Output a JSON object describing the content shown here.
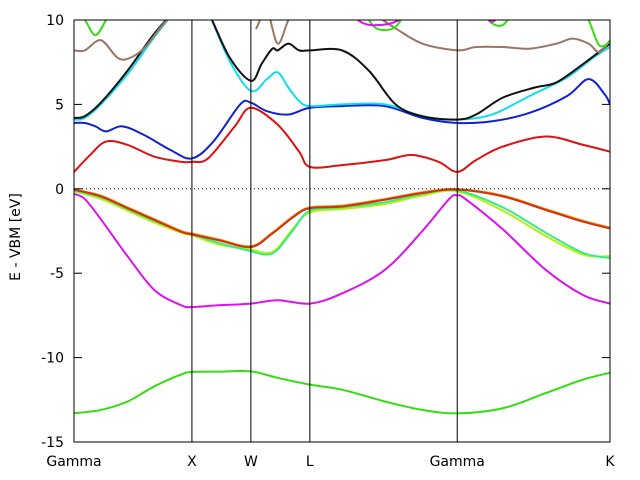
{
  "chart_data": {
    "type": "line",
    "ylabel": "E - VBM [eV]",
    "xlabel": "",
    "ylim": [
      -15,
      10
    ],
    "yticks": [
      -15,
      -10,
      -5,
      0,
      5,
      10
    ],
    "xlim": [
      0,
      1
    ],
    "kpoints": [
      {
        "label": "Gamma",
        "x": 0.0
      },
      {
        "label": "X",
        "x": 0.22
      },
      {
        "label": "W",
        "x": 0.33
      },
      {
        "label": "L",
        "x": 0.44
      },
      {
        "label": "Gamma",
        "x": 0.715
      },
      {
        "label": "K",
        "x": 1.0
      }
    ],
    "reference_line": {
      "y": 0,
      "style": "dotted"
    },
    "grid": false,
    "series": [
      {
        "color": "#33dd11",
        "x": [
          0,
          0.05,
          0.1,
          0.15,
          0.2,
          0.22,
          0.27,
          0.33,
          0.38,
          0.44,
          0.5,
          0.58,
          0.65,
          0.715,
          0.8,
          0.88,
          0.95,
          1.0
        ],
        "y": [
          -13.3,
          -13.1,
          -12.6,
          -11.7,
          -11.0,
          -10.85,
          -10.83,
          -10.82,
          -11.2,
          -11.6,
          -11.9,
          -12.6,
          -13.1,
          -13.3,
          -13.0,
          -12.1,
          -11.3,
          -10.9
        ]
      },
      {
        "color": "#dd11ee",
        "x": [
          0,
          0.02,
          0.05,
          0.1,
          0.15,
          0.2,
          0.22,
          0.27,
          0.33,
          0.38,
          0.44,
          0.5,
          0.58,
          0.65,
          0.7,
          0.715,
          0.73,
          0.8,
          0.88,
          0.95,
          1.0
        ],
        "y": [
          -0.3,
          -0.6,
          -1.8,
          -4.0,
          -6.0,
          -6.9,
          -7.0,
          -6.9,
          -6.8,
          -6.6,
          -6.8,
          -6.2,
          -4.8,
          -2.5,
          -0.6,
          -0.4,
          -0.6,
          -2.4,
          -4.8,
          -6.3,
          -6.8
        ]
      },
      {
        "color": "#bbee11",
        "x": [
          0,
          0.05,
          0.1,
          0.15,
          0.2,
          0.22,
          0.27,
          0.33,
          0.36,
          0.38,
          0.41,
          0.44,
          0.5,
          0.58,
          0.65,
          0.715,
          0.8,
          0.88,
          0.95,
          1.0
        ],
        "y": [
          -0.15,
          -0.6,
          -1.3,
          -2.0,
          -2.6,
          -2.75,
          -3.3,
          -3.6,
          -3.8,
          -3.5,
          -2.3,
          -1.4,
          -1.2,
          -0.9,
          -0.4,
          -0.15,
          -1.3,
          -2.8,
          -3.9,
          -4.0
        ]
      },
      {
        "color": "#33ee88",
        "x": [
          0,
          0.05,
          0.1,
          0.15,
          0.2,
          0.22,
          0.27,
          0.33,
          0.36,
          0.38,
          0.41,
          0.44,
          0.5,
          0.58,
          0.65,
          0.715,
          0.8,
          0.88,
          0.95,
          1.0
        ],
        "y": [
          -0.1,
          -0.5,
          -1.2,
          -1.9,
          -2.5,
          -2.7,
          -3.2,
          -3.7,
          -3.9,
          -3.6,
          -2.4,
          -1.3,
          -1.1,
          -0.8,
          -0.3,
          -0.1,
          -1.1,
          -2.6,
          -3.8,
          -4.1
        ]
      },
      {
        "color": "#ff8800",
        "x": [
          0,
          0.05,
          0.1,
          0.15,
          0.2,
          0.22,
          0.27,
          0.33,
          0.37,
          0.41,
          0.44,
          0.5,
          0.58,
          0.65,
          0.715,
          0.8,
          0.88,
          0.95,
          1.0
        ],
        "y": [
          -0.05,
          -0.4,
          -1.1,
          -1.8,
          -2.5,
          -2.65,
          -3.0,
          -3.4,
          -2.6,
          -1.6,
          -1.1,
          -1.0,
          -0.6,
          -0.2,
          -0.02,
          -0.4,
          -1.2,
          -1.9,
          -2.3
        ]
      },
      {
        "color": "#cc3311",
        "x": [
          0,
          0.05,
          0.1,
          0.15,
          0.2,
          0.22,
          0.27,
          0.33,
          0.37,
          0.41,
          0.44,
          0.5,
          0.58,
          0.65,
          0.715,
          0.8,
          0.88,
          0.95,
          1.0
        ],
        "y": [
          -0.05,
          -0.45,
          -1.15,
          -1.85,
          -2.55,
          -2.7,
          -3.05,
          -3.45,
          -2.65,
          -1.65,
          -1.15,
          -1.05,
          -0.65,
          -0.25,
          -0.05,
          -0.45,
          -1.25,
          -1.95,
          -2.35
        ]
      },
      {
        "color": "#dd1111",
        "x": [
          0,
          0.03,
          0.06,
          0.1,
          0.15,
          0.2,
          0.22,
          0.25,
          0.3,
          0.33,
          0.38,
          0.42,
          0.44,
          0.5,
          0.58,
          0.63,
          0.68,
          0.715,
          0.75,
          0.8,
          0.88,
          0.95,
          1.0
        ],
        "y": [
          1.0,
          2.0,
          2.8,
          2.6,
          1.9,
          1.6,
          1.6,
          1.8,
          3.7,
          4.8,
          3.8,
          2.2,
          1.3,
          1.4,
          1.7,
          2.0,
          1.6,
          1.0,
          1.7,
          2.5,
          3.1,
          2.6,
          2.2
        ]
      },
      {
        "color": "#1122cc",
        "x": [
          0,
          0.02,
          0.04,
          0.06,
          0.09,
          0.13,
          0.18,
          0.22,
          0.26,
          0.31,
          0.33,
          0.36,
          0.4,
          0.44,
          0.5,
          0.58,
          0.65,
          0.715,
          0.78,
          0.85,
          0.92,
          0.96,
          0.99,
          1.0
        ],
        "y": [
          3.9,
          3.9,
          3.7,
          3.4,
          3.7,
          3.2,
          2.3,
          1.8,
          2.8,
          5.0,
          5.1,
          4.6,
          4.4,
          4.8,
          4.9,
          4.9,
          4.2,
          3.9,
          4.0,
          4.5,
          5.5,
          6.5,
          5.6,
          5.0
        ]
      },
      {
        "color": "#11ddee",
        "x": [
          0,
          0.02,
          0.05,
          0.1,
          0.15,
          0.2,
          0.22,
          0.25,
          0.29,
          0.33,
          0.36,
          0.38,
          0.4,
          0.42,
          0.44,
          0.5,
          0.58,
          0.65,
          0.715,
          0.78,
          0.85,
          0.92,
          0.97,
          1.0
        ],
        "y": [
          4.1,
          4.2,
          5.0,
          6.8,
          9.0,
          11.0,
          12.0,
          10.5,
          7.6,
          5.8,
          6.5,
          6.9,
          6.0,
          5.2,
          4.9,
          5.0,
          5.0,
          4.3,
          4.1,
          4.4,
          5.5,
          6.6,
          7.8,
          8.4
        ]
      },
      {
        "color": "#111111",
        "x": [
          0,
          0.02,
          0.05,
          0.1,
          0.15,
          0.2,
          0.22,
          0.25,
          0.29,
          0.33,
          0.35,
          0.37,
          0.38,
          0.4,
          0.42,
          0.44,
          0.5,
          0.55,
          0.6,
          0.65,
          0.715,
          0.75,
          0.8,
          0.86,
          0.9,
          0.95,
          1.0
        ],
        "y": [
          4.2,
          4.3,
          5.1,
          7.0,
          9.2,
          11.0,
          12.0,
          10.5,
          7.8,
          6.4,
          7.4,
          8.3,
          8.2,
          8.6,
          8.2,
          8.2,
          8.2,
          7.0,
          5.0,
          4.3,
          4.1,
          4.4,
          5.4,
          6.0,
          6.3,
          7.4,
          8.6
        ]
      },
      {
        "color": "#997766",
        "x": [
          0,
          0.02,
          0.05,
          0.08,
          0.1,
          0.13,
          0.16,
          0.2
        ],
        "y": [
          8.2,
          8.2,
          8.8,
          7.8,
          7.7,
          8.3,
          9.5,
          11.0
        ]
      },
      {
        "color": "#997766",
        "x": [
          0.34,
          0.36,
          0.38,
          0.4,
          0.42,
          0.44,
          0.5,
          0.55,
          0.6,
          0.65,
          0.715,
          0.75,
          0.8,
          0.85,
          0.9,
          0.93,
          0.96,
          0.98,
          1.0
        ],
        "y": [
          9.5,
          10.5,
          8.6,
          10.0,
          11.0,
          11.5,
          11.0,
          10.5,
          9.5,
          8.6,
          8.2,
          8.4,
          8.4,
          8.3,
          8.6,
          8.9,
          8.6,
          8.1,
          8.8
        ]
      },
      {
        "color": "#33dd11",
        "x": [
          0,
          0.02,
          0.04,
          0.06,
          0.08
        ],
        "y": [
          10.5,
          10.0,
          9.1,
          10.0,
          11.0
        ]
      },
      {
        "color": "#33dd11",
        "x": [
          0.54,
          0.56,
          0.58,
          0.6,
          0.62
        ],
        "y": [
          10.5,
          9.6,
          9.4,
          9.6,
          10.5
        ]
      },
      {
        "color": "#33dd11",
        "x": [
          0.76,
          0.78,
          0.8,
          0.82
        ],
        "y": [
          10.5,
          9.8,
          9.7,
          10.5
        ]
      },
      {
        "color": "#33dd11",
        "x": [
          0.94,
          0.96,
          0.98,
          1.0
        ],
        "y": [
          11.0,
          10.0,
          8.5,
          8.7
        ]
      },
      {
        "color": "#dd11ee",
        "x": [
          0.51,
          0.54,
          0.57,
          0.6,
          0.63
        ],
        "y": [
          10.5,
          9.8,
          9.7,
          9.9,
          10.5
        ]
      },
      {
        "color": "#dd11ee",
        "x": [
          0.76,
          0.78,
          0.8
        ],
        "y": [
          10.5,
          9.9,
          10.5
        ]
      }
    ]
  }
}
